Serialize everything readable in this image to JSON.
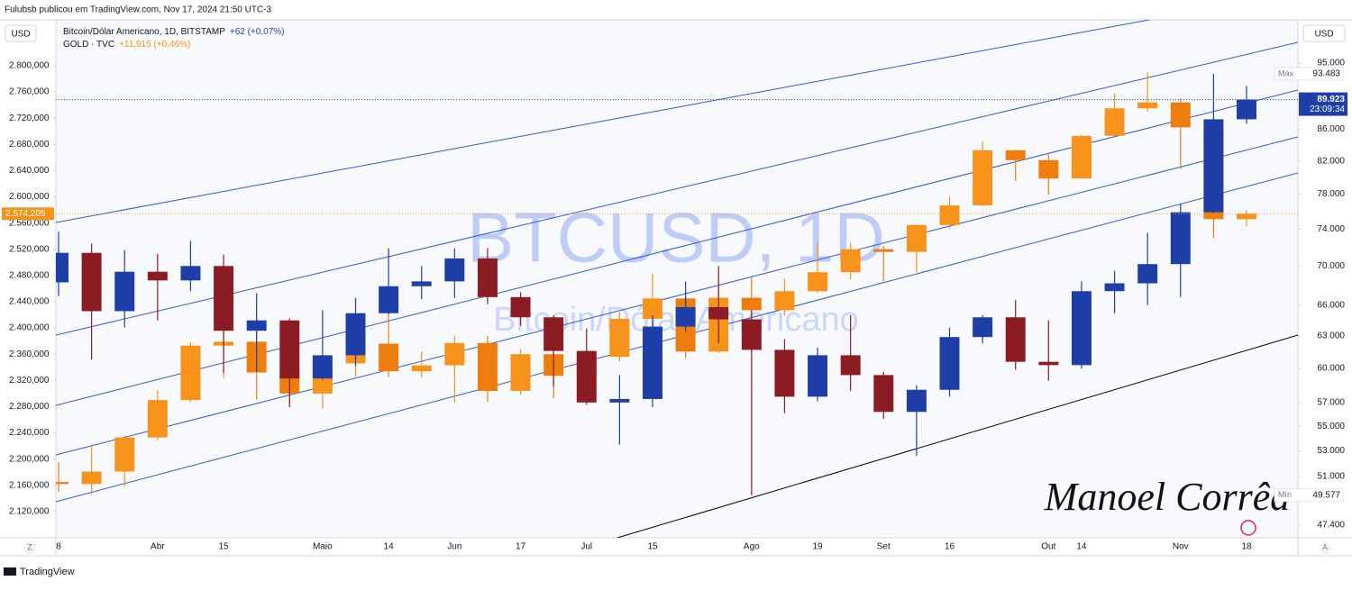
{
  "header": "Fulubsb publicou em TradingView.com, Nov 17, 2024 21:50 UTC-3",
  "footer_brand": "TradingView",
  "signature": "Manoel Corrêa",
  "scale_buttons": {
    "left": "Z",
    "right": "A"
  },
  "chart_data": {
    "type": "candlestick",
    "watermark": "BTCUSD, 1D",
    "watermark_subtitle": "Bitcoin/Dólar Americano",
    "ylabel": "USD",
    "y2label": "USD",
    "grid": false,
    "categories": [
      "8",
      null,
      null,
      "Abr",
      null,
      "15",
      null,
      null,
      "Maio",
      null,
      "14",
      null,
      "Jun",
      null,
      "17",
      null,
      "Jul",
      null,
      "15",
      null,
      null,
      "Ago",
      null,
      "19",
      null,
      "Set",
      null,
      "16",
      null,
      null,
      "Out",
      "14",
      null,
      null,
      "Nov",
      null,
      "18"
    ],
    "ylim": [
      2080,
      2870
    ],
    "yticks": [
      {
        "value": 2800,
        "label": "2.800,000"
      },
      {
        "value": 2760,
        "label": "2.760,000"
      },
      {
        "value": 2720,
        "label": "2.720,000"
      },
      {
        "value": 2680,
        "label": "2.680,000"
      },
      {
        "value": 2640,
        "label": "2.640,000"
      },
      {
        "value": 2600,
        "label": "2.600,000"
      },
      {
        "value": 2560,
        "label": "2.560,000"
      },
      {
        "value": 2520,
        "label": "2.520,000"
      },
      {
        "value": 2480,
        "label": "2.480,000"
      },
      {
        "value": 2440,
        "label": "2.440,000"
      },
      {
        "value": 2400,
        "label": "2.400,000"
      },
      {
        "value": 2360,
        "label": "2.360,000"
      },
      {
        "value": 2320,
        "label": "2.320,000"
      },
      {
        "value": 2280,
        "label": "2.280,000"
      },
      {
        "value": 2240,
        "label": "2.240,000"
      },
      {
        "value": 2200,
        "label": "2.200,000"
      },
      {
        "value": 2160,
        "label": "2.160,000"
      },
      {
        "value": 2120,
        "label": "2.120,000"
      }
    ],
    "y2lim": [
      46500,
      101400
    ],
    "y2log": true,
    "y2ticks": [
      {
        "value": 95000,
        "label": "95.000"
      },
      {
        "value": 86000,
        "label": "86.000"
      },
      {
        "value": 82000,
        "label": "82.000"
      },
      {
        "value": 78000,
        "label": "78.000"
      },
      {
        "value": 74000,
        "label": "74.000"
      },
      {
        "value": 70000,
        "label": "70.000"
      },
      {
        "value": 66000,
        "label": "66.000"
      },
      {
        "value": 63000,
        "label": "63.000"
      },
      {
        "value": 60000,
        "label": "60.000"
      },
      {
        "value": 57000,
        "label": "57.000"
      },
      {
        "value": 55000,
        "label": "55.000"
      },
      {
        "value": 53000,
        "label": "53.000"
      },
      {
        "value": 51000,
        "label": "51.000"
      },
      {
        "value": 47400,
        "label": "47.400"
      }
    ],
    "series": [
      {
        "name": "GOLD · TVC",
        "change": "+11,915 (+0,46%)",
        "color": "#f7931a",
        "down_color": "#ef7d0e",
        "last_value": {
          "value": 2574.205,
          "label": "2.574,205"
        },
        "ohlc": [
          [
            2165,
            2195,
            2150,
            2162
          ],
          [
            2162,
            2223,
            2146,
            2181
          ],
          [
            2181,
            2236,
            2158,
            2233
          ],
          [
            2233,
            2305,
            2229,
            2290
          ],
          [
            2290,
            2378,
            2287,
            2373
          ],
          [
            2373,
            2431,
            2324,
            2379
          ],
          [
            2379,
            2417,
            2291,
            2332
          ],
          [
            2332,
            2352,
            2285,
            2300
          ],
          [
            2300,
            2348,
            2277,
            2346
          ],
          [
            2346,
            2386,
            2326,
            2376
          ],
          [
            2376,
            2450,
            2325,
            2334
          ],
          [
            2334,
            2364,
            2325,
            2343
          ],
          [
            2343,
            2388,
            2286,
            2377
          ],
          [
            2377,
            2388,
            2287,
            2304
          ],
          [
            2304,
            2368,
            2298,
            2360
          ],
          [
            2360,
            2368,
            2293,
            2327
          ],
          [
            2327,
            2365,
            2318,
            2356
          ],
          [
            2356,
            2424,
            2349,
            2414
          ],
          [
            2414,
            2483,
            2395,
            2445
          ],
          [
            2445,
            2448,
            2354,
            2364
          ],
          [
            2364,
            2477,
            2362,
            2446
          ],
          [
            2446,
            2477,
            2364,
            2427
          ],
          [
            2427,
            2475,
            2419,
            2456
          ],
          [
            2456,
            2531,
            2454,
            2485
          ],
          [
            2485,
            2530,
            2474,
            2520
          ],
          [
            2520,
            2525,
            2471,
            2516
          ],
          [
            2516,
            2558,
            2485,
            2557
          ],
          [
            2557,
            2600,
            2552,
            2587
          ],
          [
            2587,
            2685,
            2586,
            2671
          ],
          [
            2671,
            2672,
            2624,
            2656
          ],
          [
            2656,
            2665,
            2603,
            2628
          ],
          [
            2628,
            2695,
            2628,
            2693
          ],
          [
            2693,
            2758,
            2692,
            2735
          ],
          [
            2735,
            2790,
            2730,
            2744
          ],
          [
            2744,
            2750,
            2643,
            2706
          ],
          [
            2706,
            2710,
            2537,
            2566
          ],
          [
            2566,
            2580,
            2555,
            2574.205
          ]
        ]
      },
      {
        "name": "Bitcoin/Dólar Americano, 1D, BITSTAMP",
        "change": "+62 (+0,07%)",
        "axis": "y2",
        "color": "#1e3fa8",
        "down_color": "#8b1c24",
        "last_value": {
          "value": 89923,
          "label": "89.923"
        },
        "countdown": "23:09:34",
        "ohlc": [
          [
            68300,
            73700,
            66900,
            71400
          ],
          [
            71400,
            72400,
            60800,
            65400
          ],
          [
            65400,
            71700,
            63800,
            69400
          ],
          [
            69400,
            71300,
            64500,
            68500
          ],
          [
            68500,
            72700,
            67400,
            70000
          ],
          [
            70000,
            71200,
            59600,
            63500
          ],
          [
            63500,
            67200,
            59700,
            64500
          ],
          [
            64500,
            64700,
            56600,
            59100
          ],
          [
            59100,
            65500,
            59000,
            61200
          ],
          [
            61200,
            66700,
            60200,
            65200
          ],
          [
            65200,
            71900,
            65100,
            67900
          ],
          [
            67900,
            70000,
            66600,
            68400
          ],
          [
            68400,
            71900,
            66700,
            70800
          ],
          [
            70800,
            71900,
            66100,
            66800
          ],
          [
            66800,
            67300,
            64000,
            64800
          ],
          [
            64800,
            65000,
            58400,
            61600
          ],
          [
            61600,
            63700,
            56800,
            57000
          ],
          [
            57000,
            59400,
            53500,
            57300
          ],
          [
            57300,
            65000,
            56600,
            63900
          ],
          [
            63900,
            68400,
            63400,
            65800
          ],
          [
            65800,
            70000,
            62300,
            64600
          ],
          [
            64600,
            65500,
            49577,
            61700
          ],
          [
            61700,
            62700,
            56100,
            57500
          ],
          [
            57500,
            61900,
            57100,
            61200
          ],
          [
            61200,
            65000,
            58000,
            59400
          ],
          [
            59400,
            59700,
            55600,
            56200
          ],
          [
            56200,
            58500,
            52600,
            58100
          ],
          [
            58100,
            63800,
            57500,
            62900
          ],
          [
            62900,
            65000,
            62300,
            64800
          ],
          [
            64800,
            66500,
            59900,
            60600
          ],
          [
            60600,
            64500,
            58900,
            60300
          ],
          [
            60300,
            68400,
            60000,
            67400
          ],
          [
            67400,
            69500,
            65200,
            68200
          ],
          [
            68200,
            73600,
            66000,
            70200
          ],
          [
            70200,
            76900,
            66800,
            75900
          ],
          [
            75900,
            93483,
            75800,
            87300
          ],
          [
            87300,
            91800,
            86700,
            89923
          ]
        ]
      }
    ],
    "markers": [
      {
        "label": "Máx",
        "value": 93483,
        "value_label": "93.483"
      },
      {
        "label": "Mín",
        "value": 49577,
        "value_label": "49.577"
      }
    ]
  }
}
